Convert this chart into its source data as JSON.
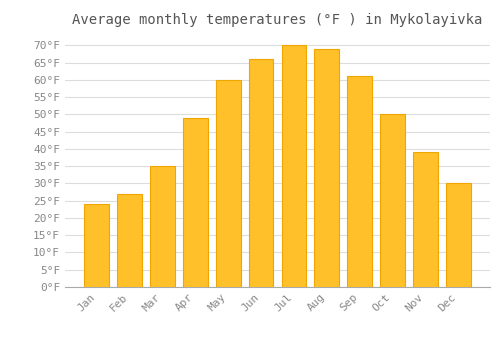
{
  "title": "Average monthly temperatures (°F ) in Mykolayivka",
  "months": [
    "Jan",
    "Feb",
    "Mar",
    "Apr",
    "May",
    "Jun",
    "Jul",
    "Aug",
    "Sep",
    "Oct",
    "Nov",
    "Dec"
  ],
  "values": [
    24,
    27,
    35,
    49,
    60,
    66,
    70,
    69,
    61,
    50,
    39,
    30
  ],
  "bar_color": "#FFC02A",
  "bar_edge_color": "#F0A500",
  "background_color": "#FFFFFF",
  "grid_color": "#DDDDDD",
  "ylim": [
    0,
    73
  ],
  "yticks": [
    0,
    5,
    10,
    15,
    20,
    25,
    30,
    35,
    40,
    45,
    50,
    55,
    60,
    65,
    70
  ],
  "title_fontsize": 10,
  "tick_fontsize": 8,
  "title_color": "#555555",
  "tick_color": "#888888"
}
